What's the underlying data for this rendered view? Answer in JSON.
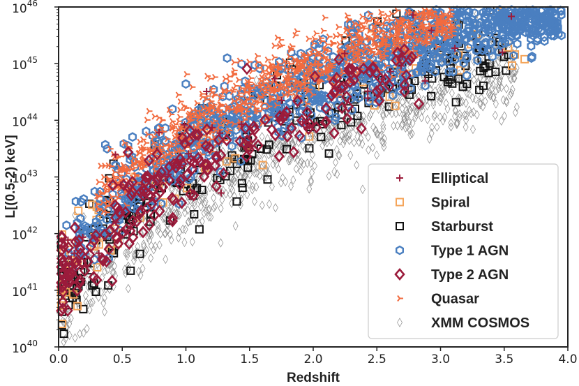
{
  "chart_data": {
    "type": "scatter",
    "title": "",
    "xlabel": "Redshift",
    "ylabel": "L[(0.5-2) keV]",
    "xlim": [
      0.0,
      4.0
    ],
    "ylim": [
      40,
      46
    ],
    "yscale": "log",
    "x_ticks": [
      "0.0",
      "0.5",
      "1.0",
      "1.5",
      "2.0",
      "2.5",
      "3.0",
      "3.5",
      "4.0"
    ],
    "y_ticks": [
      {
        "base": "10",
        "exp": "40"
      },
      {
        "base": "10",
        "exp": "41"
      },
      {
        "base": "10",
        "exp": "42"
      },
      {
        "base": "10",
        "exp": "43"
      },
      {
        "base": "10",
        "exp": "44"
      },
      {
        "base": "10",
        "exp": "45"
      },
      {
        "base": "10",
        "exp": "46"
      }
    ],
    "grid": false,
    "legend_position": "lower-right",
    "series": [
      {
        "name": "Elliptical",
        "marker": "plus",
        "color": "#9b1b3b",
        "count": 40
      },
      {
        "name": "Spiral",
        "marker": "square",
        "color": "#f5a55a",
        "count": 90
      },
      {
        "name": "Starburst",
        "marker": "square",
        "color": "#111111",
        "count": 280
      },
      {
        "name": "Type 1 AGN",
        "marker": "hexagon",
        "color": "#4a7fc0",
        "count": 1000
      },
      {
        "name": "Type 2 AGN",
        "marker": "diamond",
        "color": "#9b1b3b",
        "count": 230
      },
      {
        "name": "Quasar",
        "marker": "tri",
        "color": "#f26b3f",
        "count": 900
      },
      {
        "name": "XMM COSMOS",
        "marker": "thin-diamond",
        "color": "#888888",
        "count": 1000
      }
    ],
    "point_model": {
      "x_range": [
        0.01,
        3.95
      ],
      "note_distribution": "luminosity rises with redshift; L_min ~ 40 + 3*log10(1+z)*2.1 (flux limit)"
    }
  }
}
